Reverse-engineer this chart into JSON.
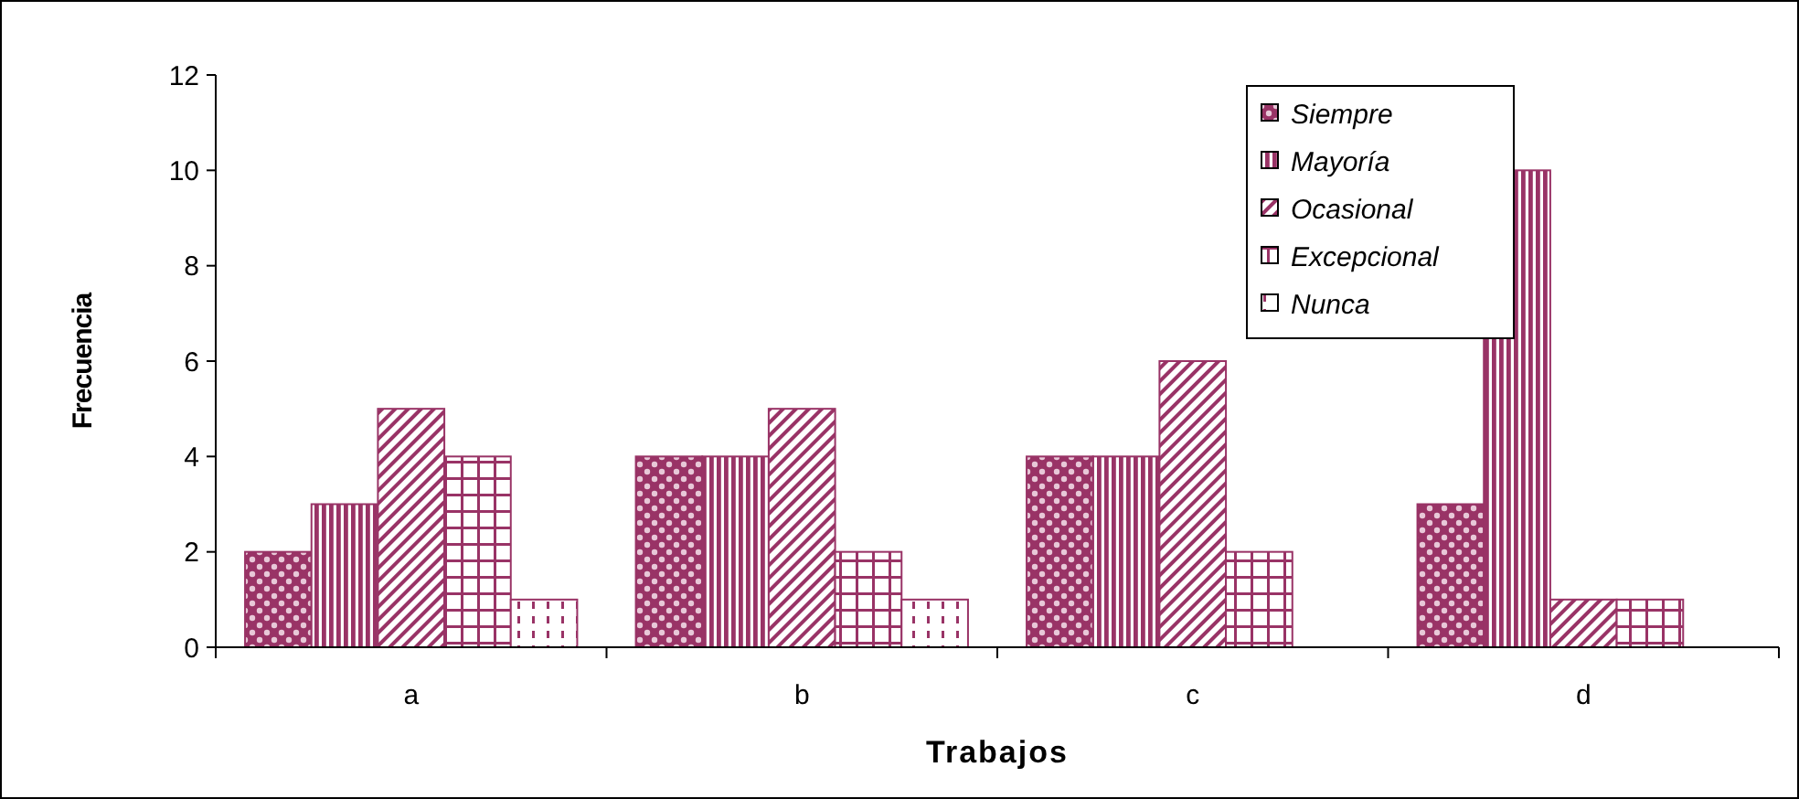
{
  "chart_data": {
    "type": "bar",
    "xlabel": "Trabajos",
    "ylabel": "Frecuencia",
    "categories": [
      "a",
      "b",
      "c",
      "d"
    ],
    "series": [
      {
        "name": "Siempre",
        "color": "#993366",
        "values": [
          2,
          4,
          4,
          3
        ]
      },
      {
        "name": "Mayoría",
        "color": "#993366",
        "values": [
          3,
          4,
          4,
          10
        ]
      },
      {
        "name": "Ocasional",
        "color": "#993366",
        "values": [
          5,
          5,
          6,
          1
        ]
      },
      {
        "name": "Excepcional",
        "color": "#993366",
        "values": [
          4,
          2,
          2,
          1
        ]
      },
      {
        "name": "Nunca",
        "color": "#993366",
        "values": [
          1,
          1,
          null,
          null
        ]
      }
    ],
    "ylim": [
      0,
      12
    ],
    "yticks": [
      0,
      2,
      4,
      6,
      8,
      10,
      12
    ],
    "legend": "top right"
  }
}
